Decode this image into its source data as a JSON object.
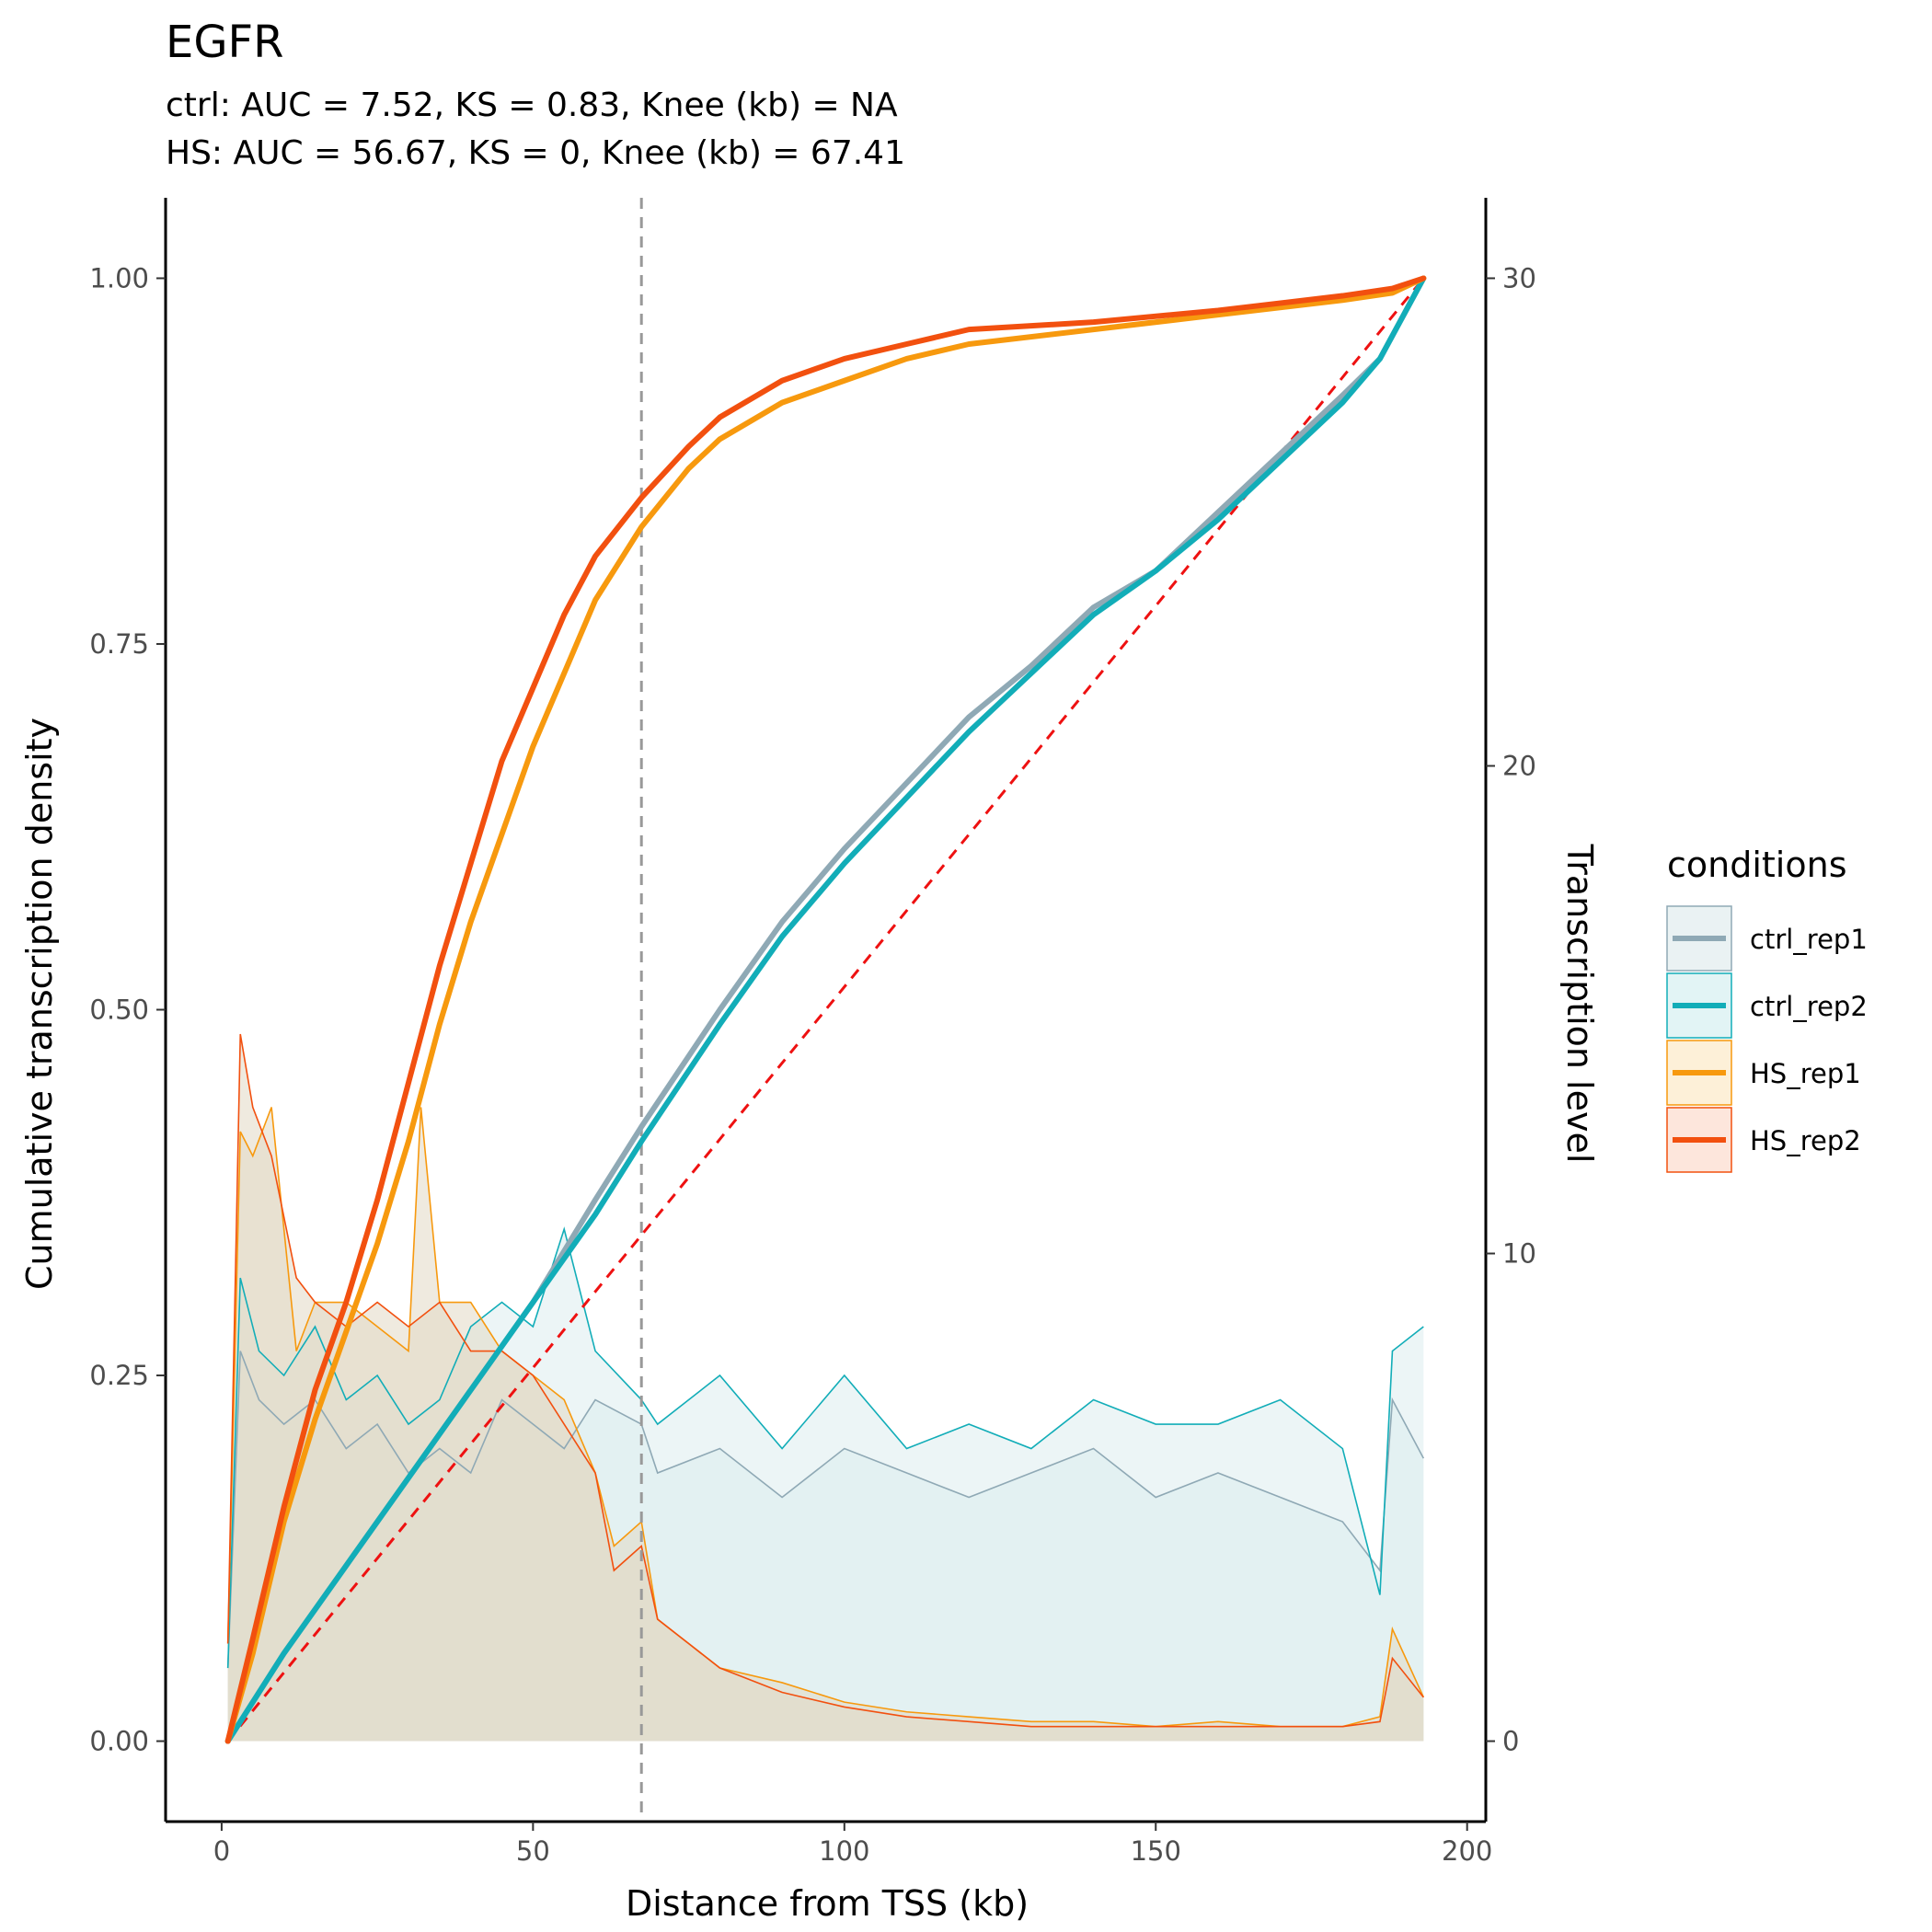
{
  "chart_data": {
    "type": "line",
    "title": "EGFR",
    "subtitle_lines": [
      "ctrl: AUC = 7.52, KS = 0.83, Knee (kb) = NA",
      "HS: AUC = 56.67, KS = 0, Knee (kb) = 67.41"
    ],
    "xlabel": "Distance from TSS (kb)",
    "ylabel": "Cumulative transcription density",
    "y2label": "Transcription level",
    "xlim": [
      -9,
      203
    ],
    "ylim": [
      -0.055,
      1.055
    ],
    "y2lim": [
      -1.65,
      31.65
    ],
    "xticks": [
      0,
      50,
      100,
      150,
      200
    ],
    "yticks": [
      0.0,
      0.25,
      0.5,
      0.75,
      1.0
    ],
    "ytick_labels": [
      "0.00",
      "0.25",
      "0.50",
      "0.75",
      "1.00"
    ],
    "y2ticks": [
      0,
      10,
      20,
      30
    ],
    "grid": false,
    "knee_vline": {
      "x": 67.41,
      "color": "#999999",
      "style": "dashed"
    },
    "reference_line": {
      "x": [
        1,
        193
      ],
      "y": [
        0,
        1
      ],
      "color": "#ee1111",
      "style": "dashed"
    },
    "legend": {
      "title": "conditions",
      "placement": "right",
      "entries": [
        {
          "label": "ctrl_rep1",
          "color": "#8fa9b5",
          "fill": "#eaf2f3"
        },
        {
          "label": "ctrl_rep2",
          "color": "#12adb8",
          "fill": "#e2f4f5"
        },
        {
          "label": "HS_rep1",
          "color": "#f7990e",
          "fill": "#fdf0d8"
        },
        {
          "label": "HS_rep2",
          "color": "#f2500f",
          "fill": "#fde6dc"
        }
      ]
    },
    "cumulative_series": [
      {
        "name": "ctrl_rep1",
        "color": "#8fa9b5",
        "x": [
          1,
          10,
          20,
          30,
          40,
          50,
          60,
          67.41,
          80,
          90,
          100,
          110,
          120,
          130,
          140,
          150,
          160,
          170,
          180,
          186,
          193
        ],
        "y": [
          0,
          0.06,
          0.12,
          0.18,
          0.24,
          0.3,
          0.37,
          0.42,
          0.5,
          0.56,
          0.61,
          0.655,
          0.7,
          0.735,
          0.775,
          0.8,
          0.84,
          0.88,
          0.92,
          0.945,
          1.0
        ]
      },
      {
        "name": "ctrl_rep2",
        "color": "#12adb8",
        "x": [
          1,
          10,
          20,
          30,
          40,
          50,
          60,
          67.41,
          80,
          90,
          100,
          110,
          120,
          130,
          140,
          150,
          160,
          170,
          180,
          186,
          193
        ],
        "y": [
          0,
          0.06,
          0.12,
          0.18,
          0.24,
          0.3,
          0.36,
          0.41,
          0.49,
          0.55,
          0.6,
          0.645,
          0.69,
          0.73,
          0.77,
          0.8,
          0.835,
          0.875,
          0.915,
          0.945,
          1.0
        ]
      },
      {
        "name": "HS_rep1",
        "color": "#f7990e",
        "x": [
          1,
          5,
          10,
          15,
          20,
          25,
          30,
          35,
          40,
          45,
          50,
          55,
          60,
          67.41,
          75,
          80,
          90,
          100,
          110,
          120,
          140,
          160,
          180,
          188,
          193
        ],
        "y": [
          0,
          0.06,
          0.15,
          0.22,
          0.28,
          0.34,
          0.41,
          0.49,
          0.56,
          0.62,
          0.68,
          0.73,
          0.78,
          0.83,
          0.87,
          0.89,
          0.915,
          0.93,
          0.945,
          0.955,
          0.965,
          0.975,
          0.985,
          0.99,
          1.0
        ]
      },
      {
        "name": "HS_rep2",
        "color": "#f2500f",
        "x": [
          1,
          5,
          10,
          15,
          20,
          25,
          30,
          35,
          40,
          45,
          50,
          55,
          60,
          67.41,
          75,
          80,
          90,
          100,
          110,
          120,
          140,
          160,
          180,
          188,
          193
        ],
        "y": [
          0,
          0.07,
          0.16,
          0.24,
          0.3,
          0.37,
          0.45,
          0.53,
          0.6,
          0.67,
          0.72,
          0.77,
          0.81,
          0.85,
          0.885,
          0.905,
          0.93,
          0.945,
          0.955,
          0.965,
          0.97,
          0.978,
          0.988,
          0.993,
          1.0
        ]
      }
    ],
    "transcription_level_series": [
      {
        "name": "ctrl_rep1",
        "color": "#8fa9b5",
        "fill": "#dcedee",
        "x": [
          1,
          3,
          6,
          10,
          15,
          20,
          25,
          30,
          35,
          40,
          45,
          50,
          55,
          60,
          67.41,
          70,
          80,
          90,
          100,
          110,
          120,
          130,
          140,
          150,
          160,
          170,
          180,
          186,
          188,
          193
        ],
        "y": [
          1.5,
          8.0,
          7.0,
          6.5,
          7.0,
          6.0,
          6.5,
          5.5,
          6.0,
          5.5,
          7.0,
          6.5,
          6.0,
          7.0,
          6.5,
          5.5,
          6.0,
          5.0,
          6.0,
          5.5,
          5.0,
          5.5,
          6.0,
          5.0,
          5.5,
          5.0,
          4.5,
          3.5,
          7.0,
          5.8
        ]
      },
      {
        "name": "ctrl_rep2",
        "color": "#12adb8",
        "fill": "#dcedee",
        "x": [
          1,
          3,
          6,
          10,
          15,
          20,
          25,
          30,
          35,
          40,
          45,
          50,
          55,
          60,
          67.41,
          70,
          80,
          90,
          100,
          110,
          120,
          130,
          140,
          150,
          160,
          170,
          180,
          186,
          188,
          193
        ],
        "y": [
          1.5,
          9.5,
          8.0,
          7.5,
          8.5,
          7.0,
          7.5,
          6.5,
          7.0,
          8.5,
          9.0,
          8.5,
          10.5,
          8.0,
          7.0,
          6.5,
          7.5,
          6.0,
          7.5,
          6.0,
          6.5,
          6.0,
          7.0,
          6.5,
          6.5,
          7.0,
          6.0,
          3.0,
          8.0,
          8.5
        ]
      },
      {
        "name": "HS_rep1",
        "color": "#f7990e",
        "fill": "#e1d8c5",
        "x": [
          1,
          3,
          5,
          8,
          12,
          15,
          20,
          25,
          30,
          32,
          35,
          40,
          45,
          50,
          55,
          60,
          63,
          67.41,
          70,
          75,
          80,
          90,
          100,
          110,
          120,
          130,
          140,
          150,
          160,
          170,
          180,
          186,
          188,
          193
        ],
        "y": [
          2.0,
          12.5,
          12.0,
          13.0,
          8.0,
          9.0,
          9.0,
          8.5,
          8.0,
          13.0,
          9.0,
          9.0,
          8.0,
          7.5,
          7.0,
          5.5,
          4.0,
          4.5,
          2.5,
          2.0,
          1.5,
          1.2,
          0.8,
          0.6,
          0.5,
          0.4,
          0.4,
          0.3,
          0.4,
          0.3,
          0.3,
          0.5,
          2.3,
          0.9
        ]
      },
      {
        "name": "HS_rep2",
        "color": "#f2500f",
        "fill": "#e1d8c5",
        "x": [
          1,
          3,
          5,
          8,
          12,
          15,
          20,
          25,
          30,
          35,
          40,
          45,
          50,
          55,
          60,
          63,
          67.41,
          70,
          75,
          80,
          90,
          100,
          110,
          120,
          130,
          140,
          150,
          160,
          170,
          180,
          186,
          188,
          193
        ],
        "y": [
          2.0,
          14.5,
          13.0,
          12.0,
          9.5,
          9.0,
          8.5,
          9.0,
          8.5,
          9.0,
          8.0,
          8.0,
          7.5,
          6.5,
          5.5,
          3.5,
          4.0,
          2.5,
          2.0,
          1.5,
          1.0,
          0.7,
          0.5,
          0.4,
          0.3,
          0.3,
          0.3,
          0.3,
          0.3,
          0.3,
          0.4,
          1.7,
          0.9
        ]
      }
    ]
  }
}
